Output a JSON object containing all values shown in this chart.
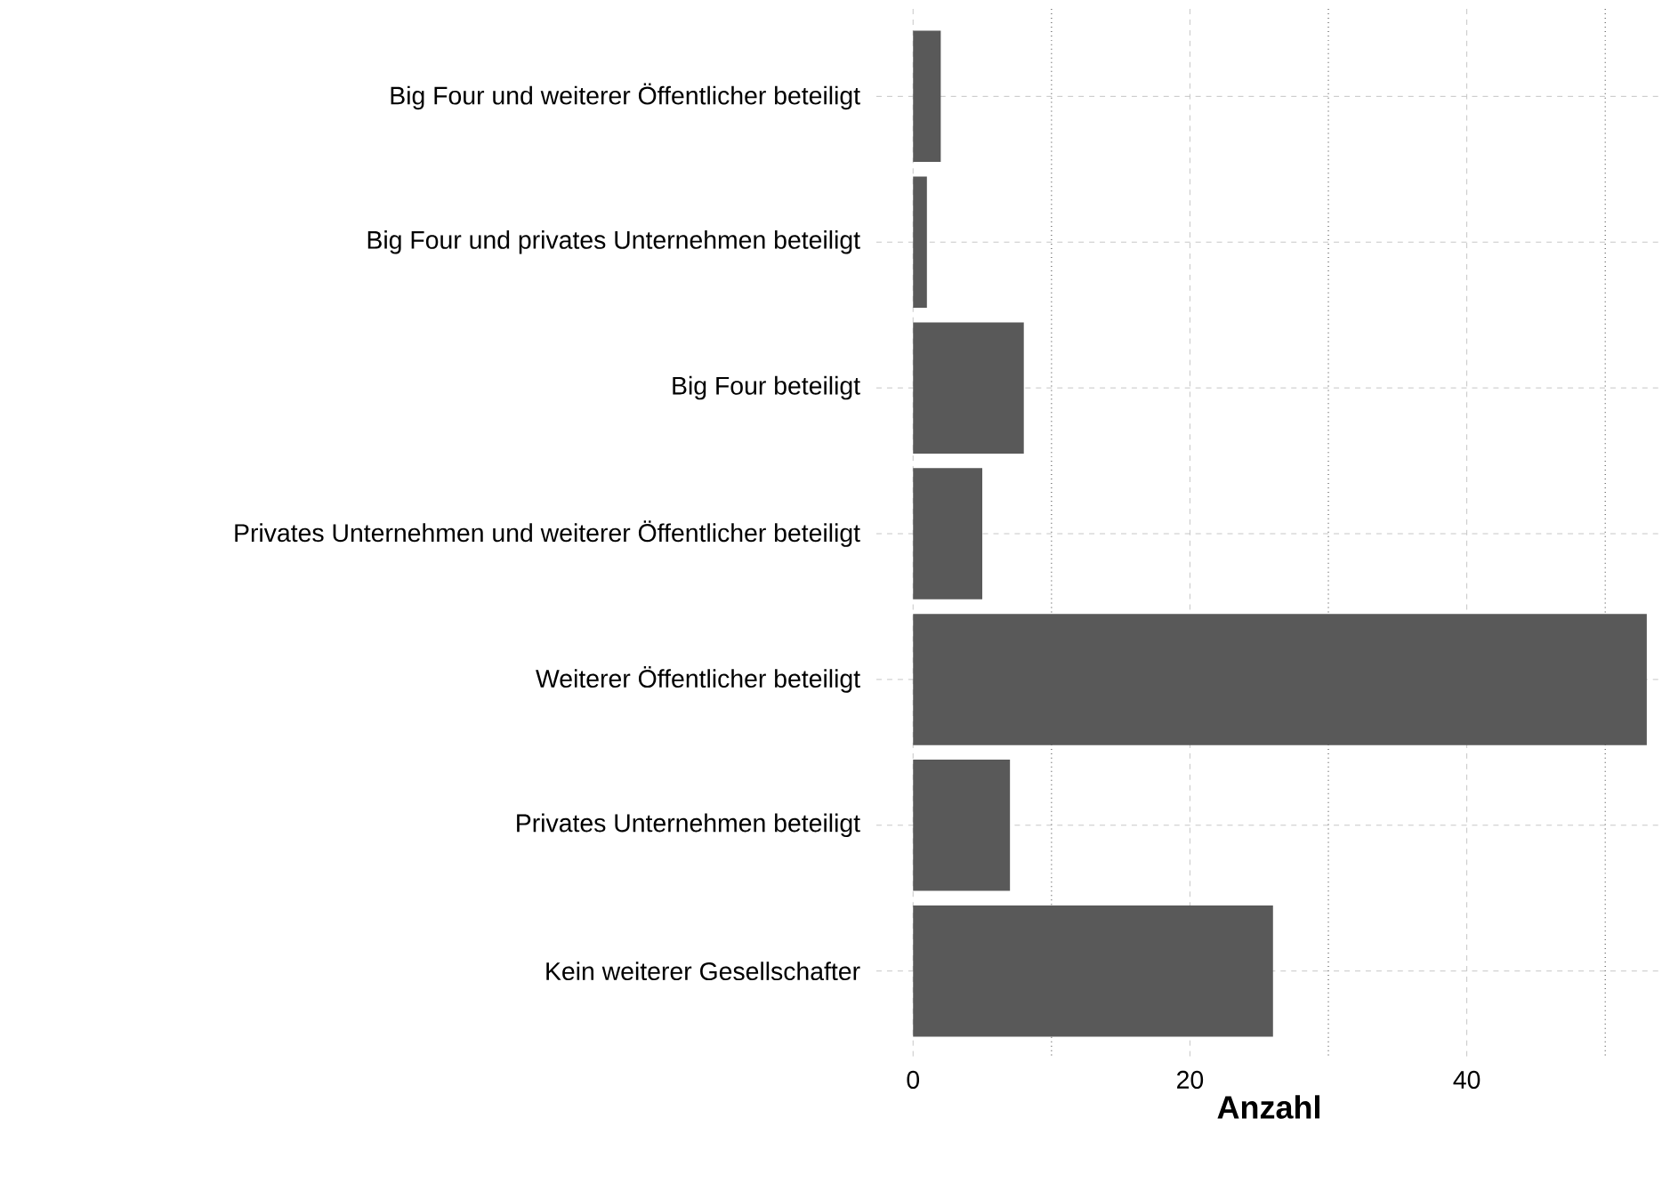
{
  "chart_data": {
    "type": "bar",
    "orientation": "horizontal",
    "xlabel": "Anzahl",
    "categories": [
      "Big Four und weiterer Öffentlicher beteiligt",
      "Big Four und privates Unternehmen beteiligt",
      "Big Four beteiligt",
      "Privates Unternehmen und weiterer Öffentlicher beteiligt",
      "Weiterer Öffentlicher beteiligt",
      "Privates Unternehmen beteiligt",
      "Kein weiterer Gesellschafter"
    ],
    "values": [
      2,
      1,
      8,
      5,
      53,
      7,
      26
    ],
    "color": "#595959",
    "xlim": [
      -2.65,
      54.1
    ],
    "xticks": [
      0,
      {
        "value": 10,
        "label": null
      },
      20,
      {
        "value": 30,
        "label": null
      },
      40,
      {
        "value": 50,
        "label": null
      }
    ],
    "grid": true
  }
}
